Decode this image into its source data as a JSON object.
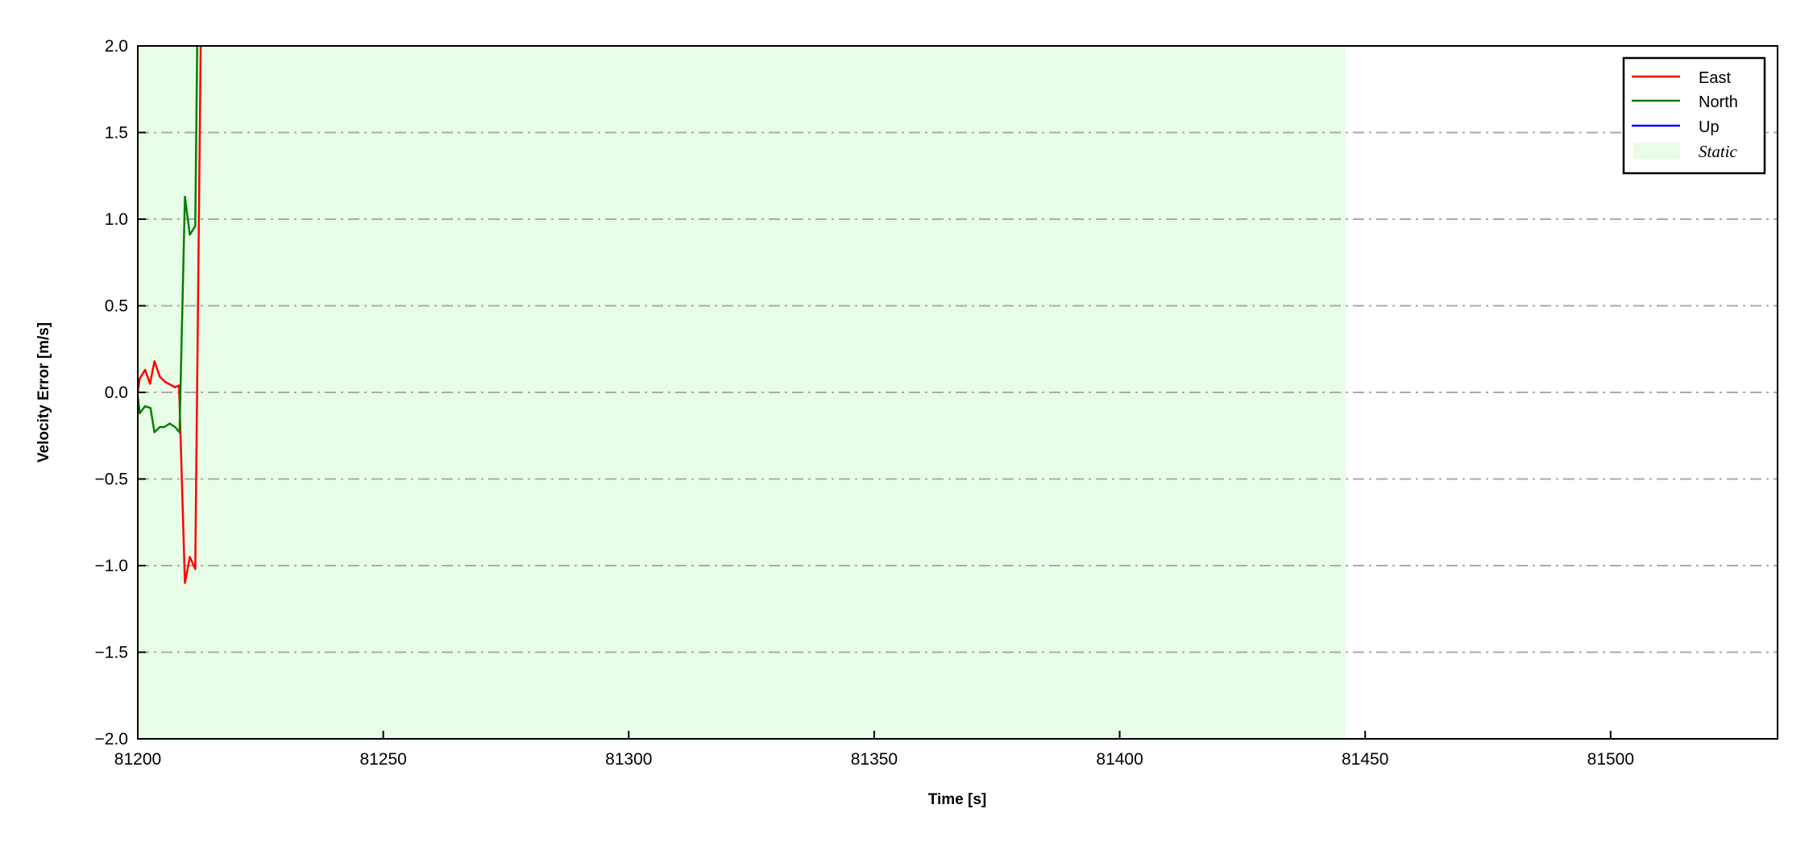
{
  "chart_data": {
    "type": "line",
    "title": "",
    "xlabel": "Time [s]",
    "ylabel": "Velocity Error [m/s]",
    "xlim": [
      81200,
      81534
    ],
    "ylim": [
      -2.0,
      2.0
    ],
    "xticks": [
      81200,
      81250,
      81300,
      81350,
      81400,
      81450,
      81500
    ],
    "yticks": [
      -2.0,
      -1.5,
      -1.0,
      -0.5,
      0.0,
      0.5,
      1.0,
      1.5,
      2.0
    ],
    "ytick_labels": [
      "−2.0",
      "−1.5",
      "−1.0",
      "−0.5",
      "0.0",
      "0.5",
      "1.0",
      "1.5",
      "2.0"
    ],
    "grid": "horizontal dash-dot",
    "legend_position": "top-right",
    "shaded_regions": [
      {
        "name": "Static",
        "x": [
          81200,
          81446
        ],
        "color": "#e8fde8"
      }
    ],
    "series": [
      {
        "name": "East",
        "color": "#ff0000",
        "x": [
          81200.0,
          81200.4,
          81201.5,
          81202.5,
          81203.4,
          81204.5,
          81205.6,
          81207.6,
          81208.4,
          81209.6,
          81210.6,
          81211.7,
          81213.0
        ],
        "y": [
          0.0,
          0.08,
          0.13,
          0.05,
          0.18,
          0.09,
          0.06,
          0.03,
          0.04,
          -1.1,
          -0.95,
          -1.02,
          2.5
        ]
      },
      {
        "name": "North",
        "color": "#008000",
        "x": [
          81200.0,
          81200.4,
          81201.5,
          81202.6,
          81203.4,
          81204.5,
          81205.4,
          81206.5,
          81207.6,
          81208.5,
          81209.6,
          81210.6,
          81211.7,
          81212.3
        ],
        "y": [
          -0.02,
          -0.12,
          -0.08,
          -0.09,
          -0.23,
          -0.2,
          -0.2,
          -0.18,
          -0.2,
          -0.23,
          1.13,
          0.91,
          0.96,
          2.5
        ]
      },
      {
        "name": "Up",
        "color": "#0000ff",
        "x": [],
        "y": []
      }
    ]
  }
}
